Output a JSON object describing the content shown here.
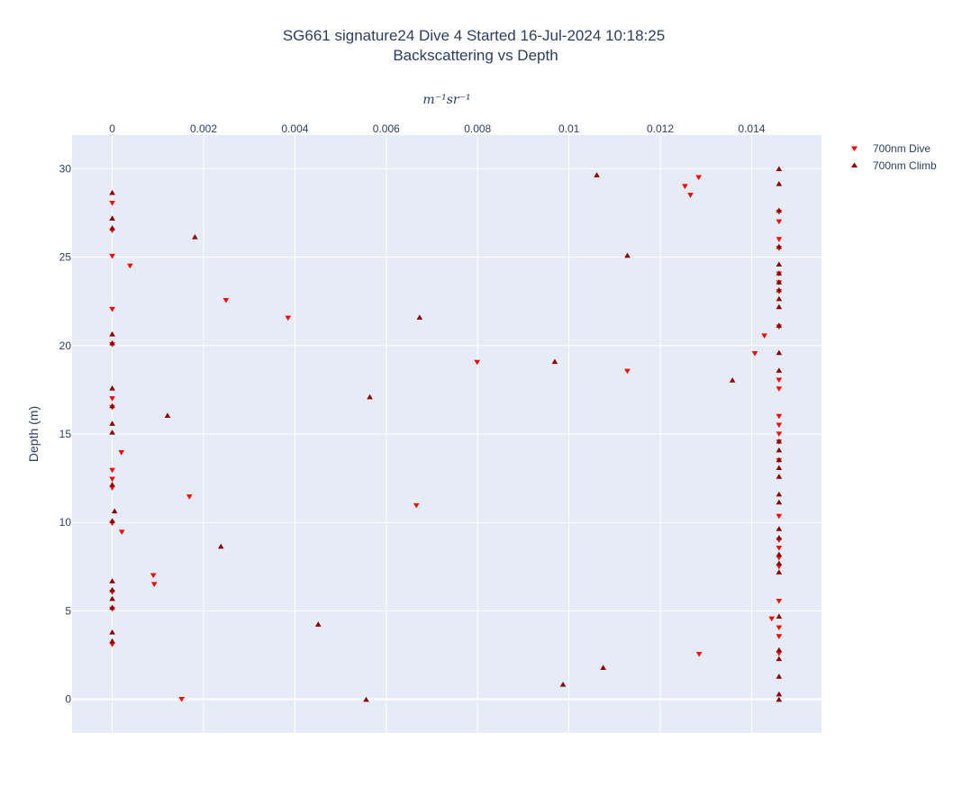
{
  "chart_data": {
    "type": "scatter",
    "title_line1": "SG661 signature24 Dive 4 Started 16-Jul-2024 10:18:25",
    "title_line2": "Backscattering vs Depth",
    "xlabel": "m⁻¹sr⁻¹",
    "ylabel": "Depth (m)",
    "xlim": [
      -0.00088,
      0.01553
    ],
    "ylim": [
      31.9,
      -1.9
    ],
    "x_ticks": [
      0,
      0.002,
      0.004,
      0.006,
      0.008,
      0.01,
      0.012,
      0.014
    ],
    "x_tick_labels": [
      "0",
      "0.002",
      "0.004",
      "0.006",
      "0.008",
      "0.01",
      "0.012",
      "0.014"
    ],
    "y_ticks": [
      0,
      5,
      10,
      15,
      20,
      25,
      30
    ],
    "y_tick_labels": [
      "0",
      "5",
      "10",
      "15",
      "20",
      "25",
      "30"
    ],
    "grid": true,
    "legend_position": "top-right",
    "series": [
      {
        "name": "700nm Dive",
        "marker": "triangle-down",
        "color": "#ff0000",
        "points": [
          [
            0.00152,
            0.0
          ],
          [
            0.01285,
            2.55
          ],
          [
            0.0146,
            2.6
          ],
          [
            0.0146,
            3.55
          ],
          [
            0.0146,
            4.05
          ],
          [
            0.01444,
            4.55
          ],
          [
            0.0146,
            5.55
          ],
          [
            0.0,
            3.1
          ],
          [
            0.0,
            5.1
          ],
          [
            0.0,
            6.05
          ],
          [
            0.00092,
            6.5
          ],
          [
            0.0009,
            7.0
          ],
          [
            0.0146,
            7.5
          ],
          [
            0.0146,
            8.0
          ],
          [
            0.0146,
            8.55
          ],
          [
            0.0146,
            9.0
          ],
          [
            0.00021,
            9.45
          ],
          [
            0.0,
            9.95
          ],
          [
            0.0146,
            10.35
          ],
          [
            0.00666,
            10.95
          ],
          [
            0.00169,
            11.45
          ],
          [
            0.0,
            11.95
          ],
          [
            0.0,
            12.45
          ],
          [
            0.0,
            12.95
          ],
          [
            0.0146,
            13.5
          ],
          [
            0.0002,
            13.95
          ],
          [
            0.0146,
            14.55
          ],
          [
            0.0146,
            15.0
          ],
          [
            0.0146,
            15.5
          ],
          [
            0.0146,
            16.0
          ],
          [
            0.0,
            16.5
          ],
          [
            0.0,
            17.0
          ],
          [
            0.0146,
            17.55
          ],
          [
            0.0146,
            18.05
          ],
          [
            0.01128,
            18.55
          ],
          [
            0.00799,
            19.05
          ],
          [
            0.01407,
            19.55
          ],
          [
            0.0,
            20.05
          ],
          [
            0.01428,
            20.55
          ],
          [
            0.0146,
            21.05
          ],
          [
            0.00385,
            21.55
          ],
          [
            0.0,
            22.05
          ],
          [
            0.00249,
            22.55
          ],
          [
            0.0146,
            23.05
          ],
          [
            0.0146,
            23.55
          ],
          [
            0.0146,
            24.05
          ],
          [
            0.00039,
            24.5
          ],
          [
            0.0,
            25.05
          ],
          [
            0.0146,
            25.5
          ],
          [
            0.0146,
            26.0
          ],
          [
            0.0,
            26.5
          ],
          [
            0.0146,
            27.0
          ],
          [
            0.0146,
            27.55
          ],
          [
            0.0,
            28.05
          ],
          [
            0.01266,
            28.5
          ],
          [
            0.01254,
            29.0
          ],
          [
            0.01284,
            29.5
          ]
        ]
      },
      {
        "name": "700nm Climb",
        "marker": "triangle-up",
        "color": "#8b0000",
        "points": [
          [
            0.0146,
            0.0
          ],
          [
            0.00556,
            0.0
          ],
          [
            0.0146,
            0.3
          ],
          [
            0.00987,
            0.85
          ],
          [
            0.0146,
            1.3
          ],
          [
            0.01075,
            1.8
          ],
          [
            0.0146,
            2.3
          ],
          [
            0.0146,
            2.8
          ],
          [
            0.0,
            3.3
          ],
          [
            0.0,
            3.8
          ],
          [
            0.00451,
            4.25
          ],
          [
            0.0146,
            4.7
          ],
          [
            0.0,
            5.2
          ],
          [
            0.0,
            5.7
          ],
          [
            0.0,
            6.2
          ],
          [
            0.0,
            6.7
          ],
          [
            0.0146,
            7.2
          ],
          [
            0.0146,
            7.7
          ],
          [
            0.0146,
            8.2
          ],
          [
            0.00238,
            8.65
          ],
          [
            0.0146,
            9.15
          ],
          [
            0.0146,
            9.65
          ],
          [
            0.0,
            10.1
          ],
          [
            5e-05,
            10.65
          ],
          [
            0.0146,
            11.15
          ],
          [
            0.0146,
            11.6
          ],
          [
            0.0,
            12.15
          ],
          [
            0.0146,
            12.6
          ],
          [
            0.0146,
            13.1
          ],
          [
            0.0146,
            13.55
          ],
          [
            0.0146,
            14.1
          ],
          [
            0.0146,
            14.6
          ],
          [
            0.0,
            15.1
          ],
          [
            0.0,
            15.6
          ],
          [
            0.00121,
            16.05
          ],
          [
            0.0,
            16.6
          ],
          [
            0.00564,
            17.1
          ],
          [
            0.0,
            17.6
          ],
          [
            0.01358,
            18.05
          ],
          [
            0.0146,
            18.6
          ],
          [
            0.00969,
            19.1
          ],
          [
            0.0146,
            19.6
          ],
          [
            0.0,
            20.15
          ],
          [
            0.0,
            20.65
          ],
          [
            0.0146,
            21.15
          ],
          [
            0.00673,
            21.6
          ],
          [
            0.0146,
            22.2
          ],
          [
            0.0146,
            22.65
          ],
          [
            0.0146,
            23.15
          ],
          [
            0.0146,
            23.6
          ],
          [
            0.0146,
            24.1
          ],
          [
            0.0146,
            24.6
          ],
          [
            0.01128,
            25.1
          ],
          [
            0.0146,
            25.6
          ],
          [
            0.00181,
            26.15
          ],
          [
            0.0,
            26.65
          ],
          [
            0.0,
            27.2
          ],
          [
            0.0146,
            27.65
          ],
          [
            0.0,
            28.65
          ],
          [
            0.0146,
            29.15
          ],
          [
            0.01061,
            29.65
          ],
          [
            0.0146,
            30.0
          ]
        ]
      }
    ]
  }
}
